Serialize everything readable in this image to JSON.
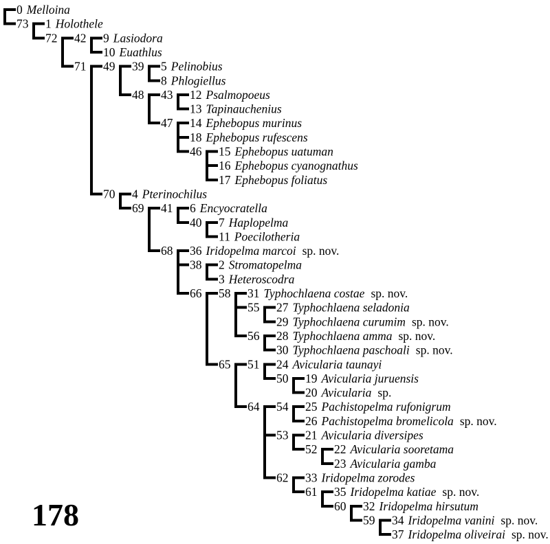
{
  "figure": {
    "number_label": "178",
    "background_color": "#ffffff",
    "line_color": "#000000",
    "text_color": "#000000"
  },
  "chart_data": {
    "type": "cladogram",
    "description": "Rectangular cladogram of theraphosid spiders; internal nodes numbered 38-73, terminal taxa numbered 0-37, new species flagged sp. nov.",
    "tree": {
      "id": "root",
      "children": [
        {
          "tip": "0",
          "name": "Melloina"
        },
        {
          "id": "73",
          "children": [
            {
              "tip": "1",
              "name": "Holothele"
            },
            {
              "id": "72",
              "children": [
                {
                  "id": "42",
                  "children": [
                    {
                      "tip": "9",
                      "name": "Lasiodora"
                    },
                    {
                      "tip": "10",
                      "name": "Euathlus"
                    }
                  ]
                },
                {
                  "id": "71",
                  "children": [
                    {
                      "id": "49",
                      "children": [
                        {
                          "id": "39",
                          "children": [
                            {
                              "tip": "5",
                              "name": "Pelinobius"
                            },
                            {
                              "tip": "8",
                              "name": "Phlogiellus"
                            }
                          ]
                        },
                        {
                          "id": "48",
                          "children": [
                            {
                              "id": "43",
                              "children": [
                                {
                                  "tip": "12",
                                  "name": "Psalmopoeus"
                                },
                                {
                                  "tip": "13",
                                  "name": "Tapinauchenius"
                                }
                              ]
                            },
                            {
                              "id": "47",
                              "children": [
                                {
                                  "tip": "14",
                                  "name": "Ephebopus murinus"
                                },
                                {
                                  "tip": "18",
                                  "name": "Ephebopus rufescens"
                                },
                                {
                                  "id": "46",
                                  "children": [
                                    {
                                      "tip": "15",
                                      "name": "Ephebopus uatuman"
                                    },
                                    {
                                      "tip": "16",
                                      "name": "Ephebopus cyanognathus"
                                    },
                                    {
                                      "tip": "17",
                                      "name": "Ephebopus foliatus"
                                    }
                                  ]
                                }
                              ]
                            }
                          ]
                        }
                      ]
                    },
                    {
                      "id": "70",
                      "children": [
                        {
                          "tip": "4",
                          "name": "Pterinochilus"
                        },
                        {
                          "id": "69",
                          "children": [
                            {
                              "id": "41",
                              "children": [
                                {
                                  "tip": "6",
                                  "name": "Encyocratella"
                                },
                                {
                                  "id": "40",
                                  "children": [
                                    {
                                      "tip": "7",
                                      "name": "Haplopelma"
                                    },
                                    {
                                      "tip": "11",
                                      "name": "Poecilotheria"
                                    }
                                  ]
                                }
                              ]
                            },
                            {
                              "id": "68",
                              "children": [
                                {
                                  "tip": "36",
                                  "name": "Iridopelma marcoi",
                                  "suffix": "sp. nov."
                                },
                                {
                                  "id": "38",
                                  "children": [
                                    {
                                      "tip": "2",
                                      "name": "Stromatopelma"
                                    },
                                    {
                                      "tip": "3",
                                      "name": "Heteroscodra"
                                    }
                                  ]
                                },
                                {
                                  "id": "66",
                                  "children": [
                                    {
                                      "id": "58",
                                      "children": [
                                        {
                                          "tip": "31",
                                          "name": "Typhochlaena costae",
                                          "suffix": "sp. nov."
                                        },
                                        {
                                          "id": "55",
                                          "children": [
                                            {
                                              "tip": "27",
                                              "name": "Typhochlaena seladonia"
                                            },
                                            {
                                              "tip": "29",
                                              "name": "Typhochlaena curumim",
                                              "suffix": "sp. nov."
                                            }
                                          ]
                                        },
                                        {
                                          "id": "56",
                                          "children": [
                                            {
                                              "tip": "28",
                                              "name": "Typhochlaena amma",
                                              "suffix": "sp. nov."
                                            },
                                            {
                                              "tip": "30",
                                              "name": "Typhochlaena paschoali",
                                              "suffix": "sp. nov."
                                            }
                                          ]
                                        }
                                      ]
                                    },
                                    {
                                      "id": "65",
                                      "children": [
                                        {
                                          "id": "51",
                                          "children": [
                                            {
                                              "tip": "24",
                                              "name": "Avicularia taunayi"
                                            },
                                            {
                                              "id": "50",
                                              "children": [
                                                {
                                                  "tip": "19",
                                                  "name": "Avicularia juruensis"
                                                },
                                                {
                                                  "tip": "20",
                                                  "name": "Avicularia",
                                                  "suffix": "sp."
                                                }
                                              ]
                                            }
                                          ]
                                        },
                                        {
                                          "id": "64",
                                          "children": [
                                            {
                                              "id": "54",
                                              "children": [
                                                {
                                                  "tip": "25",
                                                  "name": "Pachistopelma rufonigrum"
                                                },
                                                {
                                                  "tip": "26",
                                                  "name": "Pachistopelma bromelicola",
                                                  "suffix": "sp. nov."
                                                }
                                              ]
                                            },
                                            {
                                              "id": "53",
                                              "children": [
                                                {
                                                  "tip": "21",
                                                  "name": "Avicularia diversipes"
                                                },
                                                {
                                                  "id": "52",
                                                  "children": [
                                                    {
                                                      "tip": "22",
                                                      "name": "Avicularia sooretama"
                                                    },
                                                    {
                                                      "tip": "23",
                                                      "name": "Avicularia gamba"
                                                    }
                                                  ]
                                                }
                                              ]
                                            },
                                            {
                                              "id": "62",
                                              "children": [
                                                {
                                                  "tip": "33",
                                                  "name": "Iridopelma zorodes"
                                                },
                                                {
                                                  "id": "61",
                                                  "children": [
                                                    {
                                                      "tip": "35",
                                                      "name": "Iridopelma katiae",
                                                      "suffix": "sp. nov."
                                                    },
                                                    {
                                                      "id": "60",
                                                      "children": [
                                                        {
                                                          "tip": "32",
                                                          "name": "Iridopelma hirsutum"
                                                        },
                                                        {
                                                          "id": "59",
                                                          "children": [
                                                            {
                                                              "tip": "34",
                                                              "name": "Iridopelma vanini",
                                                              "suffix": "sp. nov."
                                                            },
                                                            {
                                                              "tip": "37",
                                                              "name": "Iridopelma oliveirai",
                                                              "suffix": "sp. nov."
                                                            }
                                                          ]
                                                        }
                                                      ]
                                                    }
                                                  ]
                                                }
                                              ]
                                            }
                                          ]
                                        }
                                      ]
                                    }
                                  ]
                                }
                              ]
                            }
                          ]
                        }
                      ]
                    }
                  ]
                }
              ]
            }
          ]
        }
      ]
    }
  }
}
